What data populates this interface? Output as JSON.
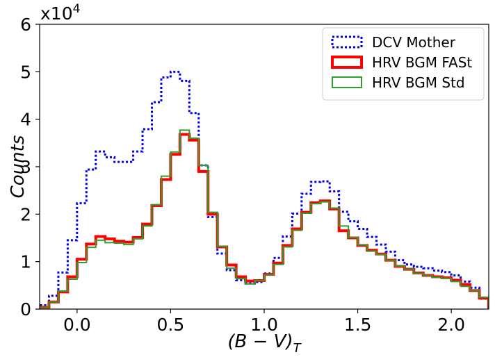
{
  "chart_data": {
    "type": "step",
    "xlabel_main": "(B − V)",
    "xlabel_sub": "T",
    "ylabel": "Counts",
    "y_multiplier": "x10",
    "y_multiplier_exp": "4",
    "xlim": [
      -0.2,
      2.2
    ],
    "ylim": [
      0,
      60000
    ],
    "x_ticks": [
      0.0,
      0.5,
      1.0,
      1.5,
      2.0
    ],
    "x_tick_labels": [
      "0.0",
      "0.5",
      "1.0",
      "1.5",
      "2.0"
    ],
    "y_ticks": [
      0,
      10000,
      20000,
      30000,
      40000,
      50000,
      60000
    ],
    "y_tick_labels": [
      "0",
      "1",
      "2",
      "3",
      "4",
      "5",
      "6"
    ],
    "bin_edges": [
      -0.2,
      -0.15,
      -0.1,
      -0.05,
      0.0,
      0.05,
      0.1,
      0.15,
      0.2,
      0.25,
      0.3,
      0.35,
      0.4,
      0.45,
      0.5,
      0.55,
      0.6,
      0.65,
      0.7,
      0.75,
      0.8,
      0.85,
      0.9,
      0.95,
      1.0,
      1.05,
      1.1,
      1.15,
      1.2,
      1.25,
      1.3,
      1.35,
      1.4,
      1.45,
      1.5,
      1.55,
      1.6,
      1.65,
      1.7,
      1.75,
      1.8,
      1.85,
      1.9,
      1.95,
      2.0,
      2.05,
      2.1,
      2.15,
      2.2
    ],
    "legend_position": "top-right",
    "series": [
      {
        "name": "DCV Mother",
        "color": "#0000ee",
        "style": "dotted",
        "values": [
          800,
          2800,
          7700,
          14500,
          22300,
          29400,
          33200,
          32000,
          31000,
          31000,
          33200,
          37900,
          43600,
          48800,
          50000,
          48100,
          41300,
          30300,
          19400,
          11700,
          8200,
          6100,
          5400,
          5700,
          7500,
          10800,
          15300,
          20100,
          24300,
          26800,
          26900,
          24800,
          20500,
          18500,
          16900,
          15200,
          13600,
          12100,
          10300,
          9400,
          8900,
          8600,
          8100,
          7800,
          7100,
          5800,
          4500,
          2200
        ]
      },
      {
        "name": "HRV BGM FASt",
        "color": "#ff0000",
        "style": "solid",
        "values": [
          400,
          1500,
          3600,
          6800,
          10500,
          13700,
          15300,
          14800,
          14300,
          14100,
          15100,
          17900,
          21800,
          27300,
          32600,
          36800,
          35600,
          29000,
          20000,
          13100,
          9300,
          6800,
          5900,
          6000,
          7300,
          9700,
          13400,
          16900,
          20400,
          22400,
          22800,
          21100,
          16500,
          15000,
          13400,
          12400,
          11600,
          10300,
          9000,
          8400,
          7600,
          7100,
          6800,
          6600,
          6100,
          5200,
          3900,
          2300
        ]
      },
      {
        "name": "HRV BGM Std",
        "color": "#2ca02c",
        "style": "solid",
        "values": [
          400,
          1500,
          3800,
          6300,
          9800,
          13000,
          14500,
          14000,
          13900,
          13600,
          14800,
          17500,
          22000,
          28000,
          33100,
          37700,
          36000,
          30300,
          20400,
          13200,
          8600,
          6400,
          5300,
          6000,
          7200,
          9400,
          13100,
          16600,
          20200,
          22200,
          22600,
          21300,
          17500,
          15100,
          13500,
          12200,
          11500,
          10300,
          9100,
          8400,
          7500,
          7100,
          6700,
          6500,
          5800,
          4800,
          3900,
          2500
        ]
      }
    ]
  }
}
